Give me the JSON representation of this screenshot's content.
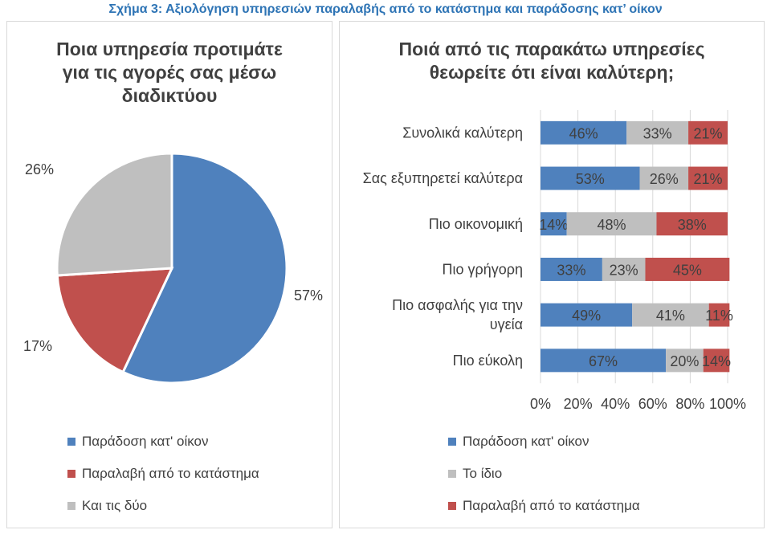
{
  "figure_title": "Σχήμα 3: Αξιολόγηση υπηρεσιών παραλαβής από το κατάστημα και παράδοσης κατ’ οίκον",
  "chart_data": [
    {
      "type": "pie",
      "title": "Ποια υπηρεσία προτιμάτε για τις αγορές σας μέσω διαδικτύου",
      "title_lines": [
        "Ποια υπηρεσία προτιμάτε",
        "για τις αγορές σας μέσω",
        "διαδικτύου"
      ],
      "slices": [
        {
          "name": "Παράδοση κατ' οίκον",
          "value": 57,
          "label": "57%",
          "color": "#4f81bd"
        },
        {
          "name": "Παραλαβή από το κατάστημα",
          "value": 17,
          "label": "17%",
          "color": "#c0504d"
        },
        {
          "name": "Και τις δύο",
          "value": 26,
          "label": "26%",
          "color": "#bfbfbf"
        }
      ],
      "legend_placement": "bottom"
    },
    {
      "type": "bar",
      "orientation": "horizontal",
      "stacked": "100%",
      "title": "Ποιά από τις παρακάτω υπηρεσίες θεωρείτε ότι είναι καλύτερη;",
      "title_lines": [
        "Ποιά από τις παρακάτω υπηρεσίες",
        "θεωρείτε ότι είναι καλύτερη;"
      ],
      "categories": [
        "Συνολικά καλύτερη",
        "Σας εξυπηρετεί καλύτερα",
        "Πιο οικονομική",
        "Πιο γρήγορη",
        "Πιο ασφαλής για την υγεία",
        "Πιο εύκολη"
      ],
      "category_lines": [
        [
          "Συνολικά καλύτερη"
        ],
        [
          "Σας εξυπηρετεί καλύτερα"
        ],
        [
          "Πιο οικονομική"
        ],
        [
          "Πιο γρήγορη"
        ],
        [
          "Πιο ασφαλής για την",
          "υγεία"
        ],
        [
          "Πιο εύκολη"
        ]
      ],
      "series": [
        {
          "name": "Παράδοση κατ' οίκον",
          "color": "#4f81bd",
          "values": [
            46,
            53,
            14,
            33,
            49,
            67
          ]
        },
        {
          "name": "Το ίδιο",
          "color": "#bfbfbf",
          "values": [
            33,
            26,
            48,
            23,
            41,
            20
          ]
        },
        {
          "name": "Παραλαβή από το κατάστημα",
          "color": "#c0504d",
          "values": [
            21,
            21,
            38,
            45,
            11,
            14
          ]
        }
      ],
      "xlim": [
        0,
        100
      ],
      "xticks": [
        "0%",
        "20%",
        "40%",
        "60%",
        "80%",
        "100%"
      ],
      "grid": true,
      "legend_placement": "bottom"
    }
  ]
}
